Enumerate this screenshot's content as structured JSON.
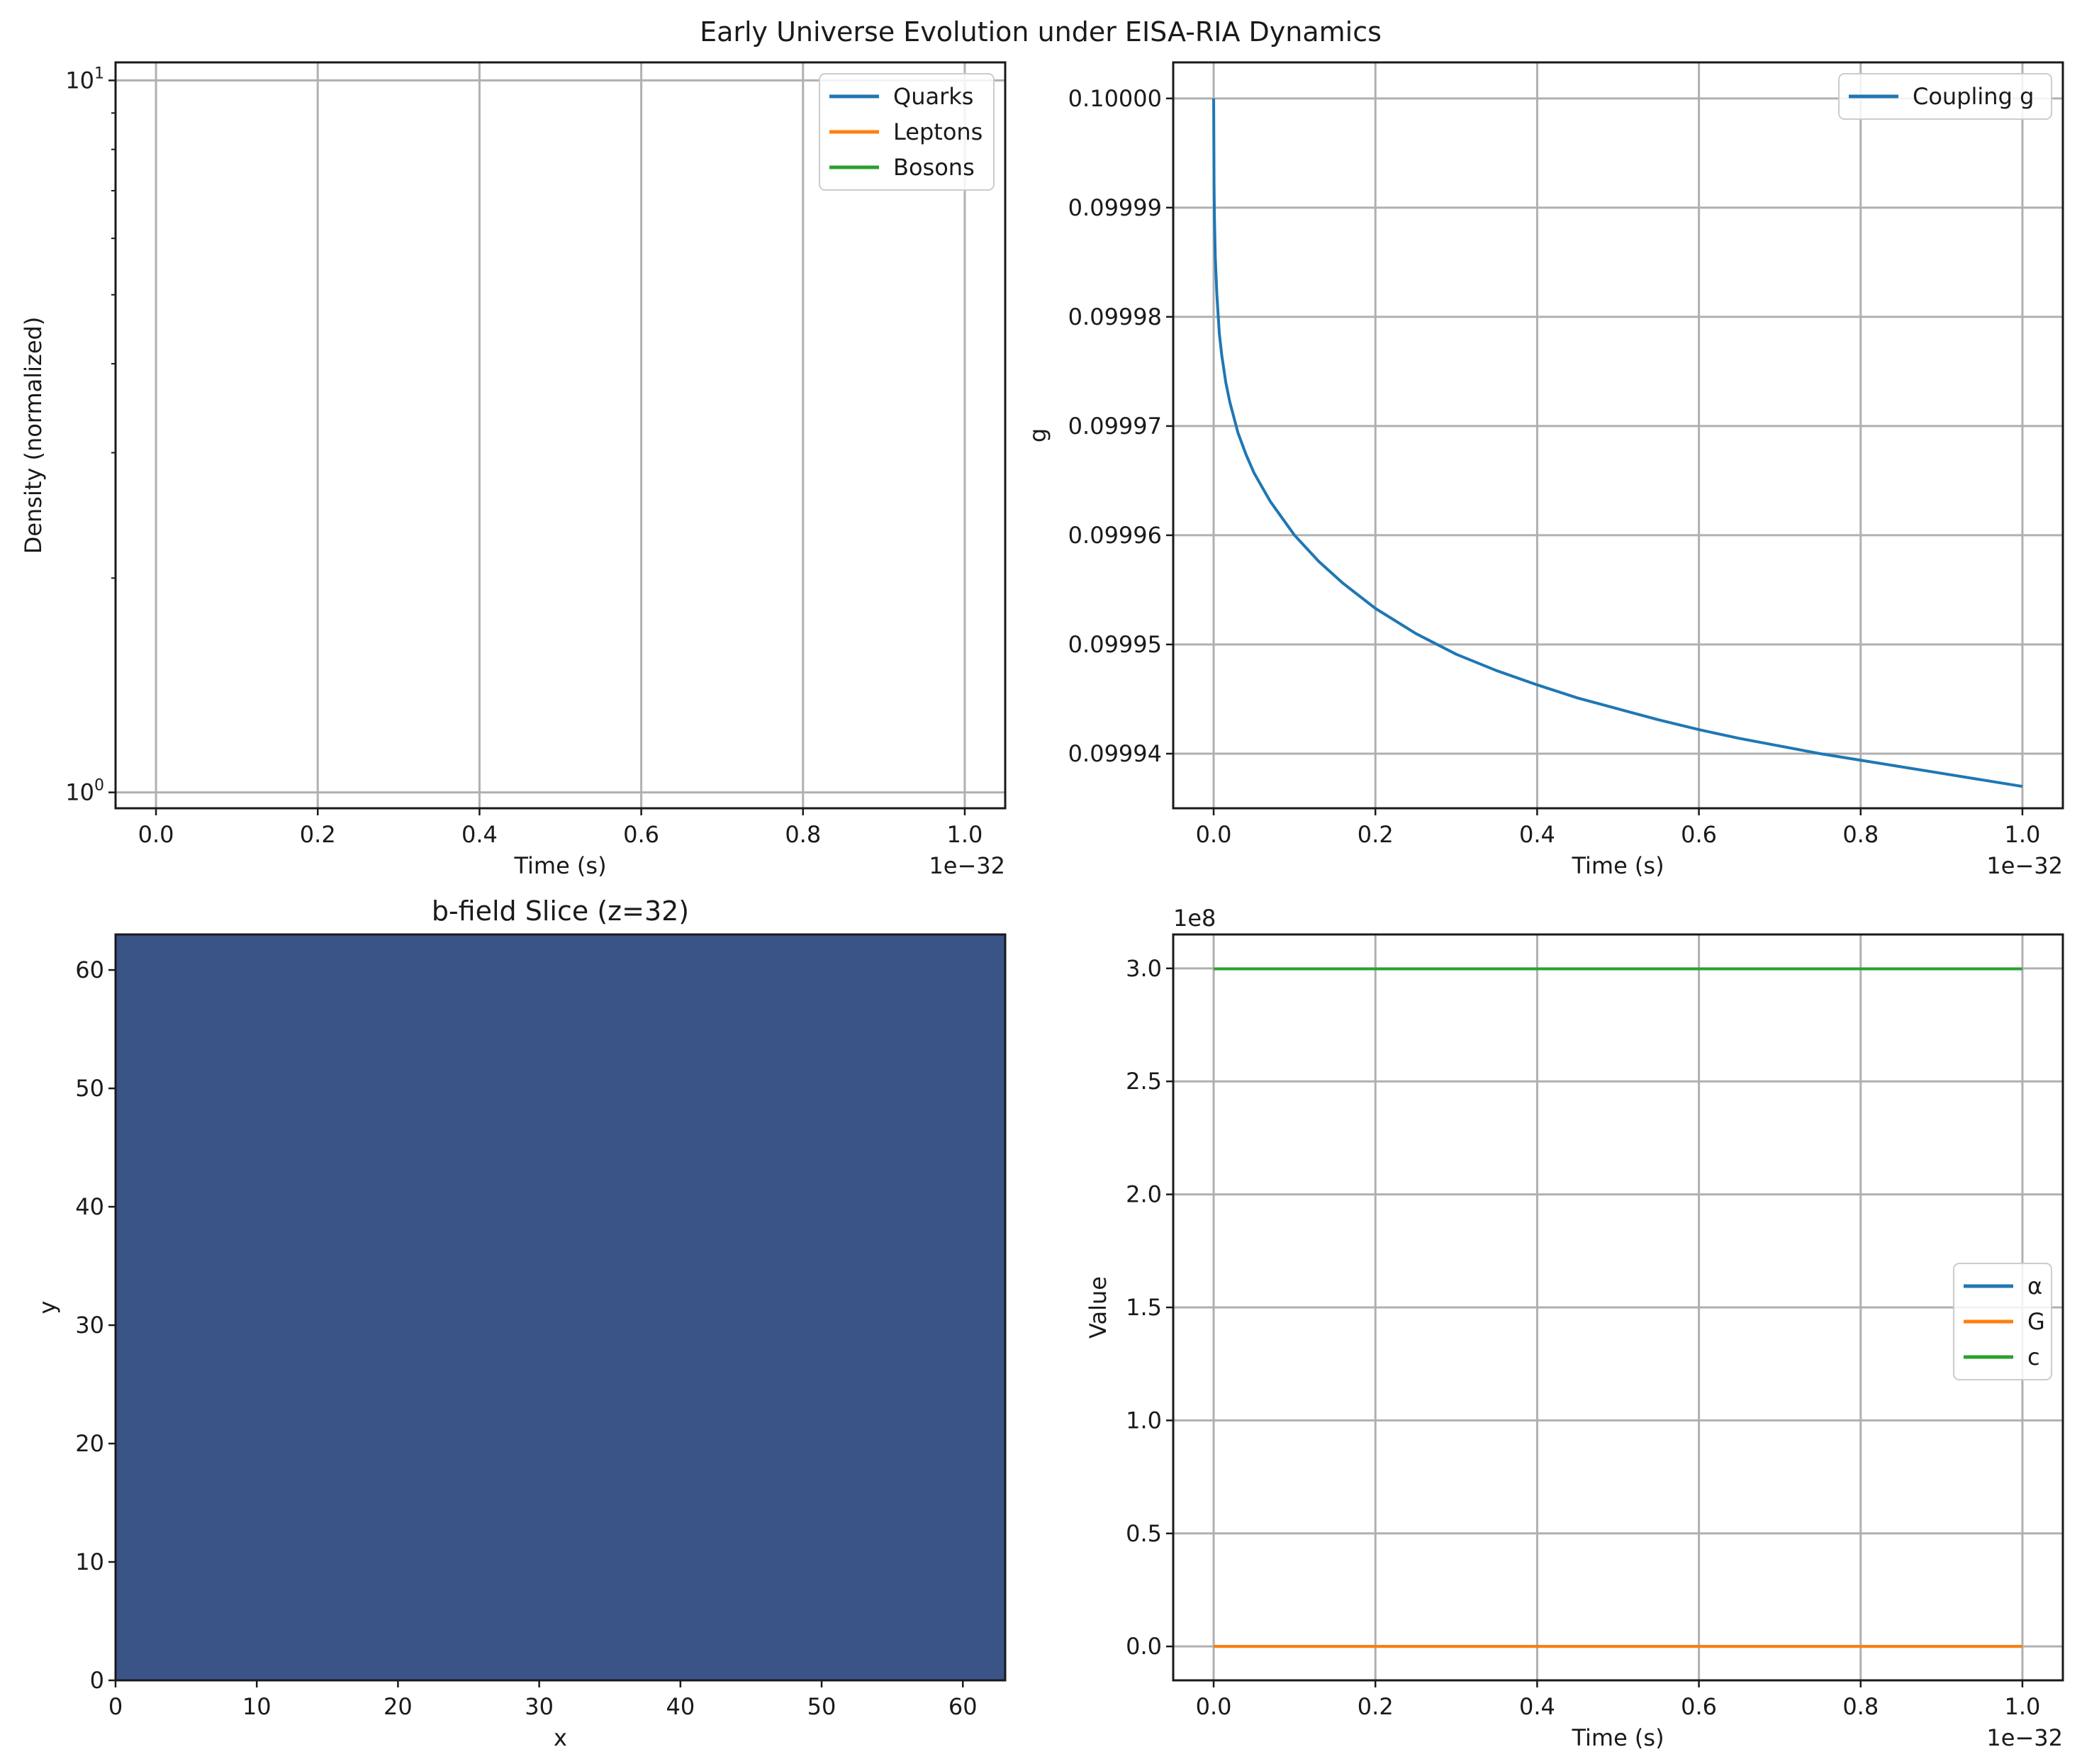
{
  "figure": {
    "suptitle": "Early Universe Evolution under EISA-RIA Dynamics"
  },
  "chart_data": [
    {
      "id": "density",
      "type": "line",
      "title": "",
      "xlabel": "Time (s)",
      "ylabel": "Density (normalized)",
      "x_offset_text": "1e−32",
      "yscale": "log",
      "xlim": [
        -0.05,
        1.05
      ],
      "ylim": [
        0.95,
        10.6
      ],
      "xticks": [
        0.0,
        0.2,
        0.4,
        0.6,
        0.8,
        1.0
      ],
      "xtick_labels": [
        "0.0",
        "0.2",
        "0.4",
        "0.6",
        "0.8",
        "1.0"
      ],
      "yticks": [
        1,
        10
      ],
      "ytick_labels": [
        {
          "base": "10",
          "exp": "0"
        },
        {
          "base": "10",
          "exp": "1"
        }
      ],
      "grid": true,
      "legend_position": "upper right",
      "series": [
        {
          "name": "Quarks",
          "color": "#1f77b4",
          "x": [],
          "y": []
        },
        {
          "name": "Leptons",
          "color": "#ff7f0e",
          "x": [],
          "y": []
        },
        {
          "name": "Bosons",
          "color": "#2ca02c",
          "x": [],
          "y": []
        }
      ]
    },
    {
      "id": "coupling",
      "type": "line",
      "title": "",
      "xlabel": "Time (s)",
      "ylabel": "g",
      "x_offset_text": "1e−32",
      "xlim": [
        -0.05,
        1.05
      ],
      "ylim": [
        0.099935,
        0.1000033
      ],
      "xticks": [
        0.0,
        0.2,
        0.4,
        0.6,
        0.8,
        1.0
      ],
      "xtick_labels": [
        "0.0",
        "0.2",
        "0.4",
        "0.6",
        "0.8",
        "1.0"
      ],
      "yticks": [
        0.09994,
        0.09995,
        0.09996,
        0.09997,
        0.09998,
        0.09999,
        0.1
      ],
      "ytick_labels": [
        "0.09994",
        "0.09995",
        "0.09996",
        "0.09997",
        "0.09998",
        "0.09999",
        "0.10000"
      ],
      "grid": true,
      "legend_position": "upper right",
      "series": [
        {
          "name": "Coupling g",
          "color": "#1f77b4",
          "x": [
            0.0,
            0.0005,
            0.001,
            0.002,
            0.004,
            0.007,
            0.01,
            0.015,
            0.02,
            0.03,
            0.04,
            0.05,
            0.07,
            0.1,
            0.13,
            0.16,
            0.2,
            0.25,
            0.3,
            0.35,
            0.4,
            0.45,
            0.5,
            0.55,
            0.6,
            0.65,
            0.7,
            0.75,
            0.8,
            0.85,
            0.9,
            0.95,
            1.0
          ],
          "y": [
            0.1,
            0.099992,
            0.099989,
            0.0999855,
            0.099982,
            0.0999785,
            0.0999765,
            0.099974,
            0.0999722,
            0.0999694,
            0.0999674,
            0.0999657,
            0.0999631,
            0.09996,
            0.0999576,
            0.0999556,
            0.0999533,
            0.099951,
            0.0999491,
            0.0999476,
            0.0999463,
            0.0999451,
            0.0999441,
            0.0999431,
            0.0999422,
            0.0999414,
            0.0999407,
            0.09994,
            0.0999394,
            0.0999388,
            0.0999382,
            0.0999376,
            0.099937
          ]
        }
      ]
    },
    {
      "id": "bfield",
      "type": "heatmap",
      "title": "b-field Slice (z=32)",
      "xlabel": "x",
      "ylabel": "y",
      "xlim": [
        0,
        63
      ],
      "ylim": [
        0,
        63
      ],
      "xticks": [
        0,
        10,
        20,
        30,
        40,
        50,
        60
      ],
      "xtick_labels": [
        "0",
        "10",
        "20",
        "30",
        "40",
        "50",
        "60"
      ],
      "yticks": [
        0,
        10,
        20,
        30,
        40,
        50,
        60
      ],
      "ytick_labels": [
        "0",
        "10",
        "20",
        "30",
        "40",
        "50",
        "60"
      ],
      "fill_color": "#3a5488",
      "grid": false
    },
    {
      "id": "constants",
      "type": "line",
      "title": "",
      "xlabel": "Time (s)",
      "ylabel": "Value",
      "x_offset_text": "1e−32",
      "y_offset_text": "1e8",
      "xlim": [
        -0.05,
        1.05
      ],
      "ylim": [
        -0.15,
        3.15
      ],
      "xticks": [
        0.0,
        0.2,
        0.4,
        0.6,
        0.8,
        1.0
      ],
      "xtick_labels": [
        "0.0",
        "0.2",
        "0.4",
        "0.6",
        "0.8",
        "1.0"
      ],
      "yticks": [
        0.0,
        0.5,
        1.0,
        1.5,
        2.0,
        2.5,
        3.0
      ],
      "ytick_labels": [
        "0.0",
        "0.5",
        "1.0",
        "1.5",
        "2.0",
        "2.5",
        "3.0"
      ],
      "grid": true,
      "legend_position": "center right",
      "series": [
        {
          "name": "α",
          "color": "#1f77b4",
          "x": [
            0.0,
            1.0
          ],
          "y": [
            0.0,
            0.0
          ]
        },
        {
          "name": "G",
          "color": "#ff7f0e",
          "x": [
            0.0,
            1.0
          ],
          "y": [
            0.0,
            0.0
          ]
        },
        {
          "name": "c",
          "color": "#2ca02c",
          "x": [
            0.0,
            1.0
          ],
          "y": [
            2.998,
            2.998
          ]
        }
      ]
    }
  ]
}
